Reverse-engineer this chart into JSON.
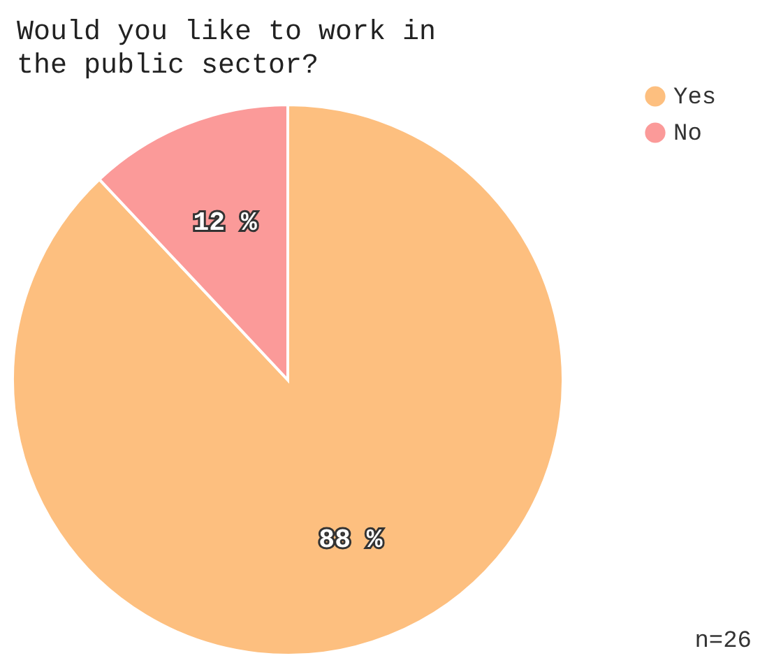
{
  "chart_data": {
    "type": "pie",
    "title": "Would you like to work in the public sector?",
    "categories": [
      "Yes",
      "No"
    ],
    "values": [
      88,
      12
    ],
    "colors": [
      "#fdbf7f",
      "#fb9a99"
    ],
    "value_labels": [
      "88 %",
      "12 %"
    ],
    "legend": "top right",
    "annotations": [
      "n=26"
    ]
  }
}
